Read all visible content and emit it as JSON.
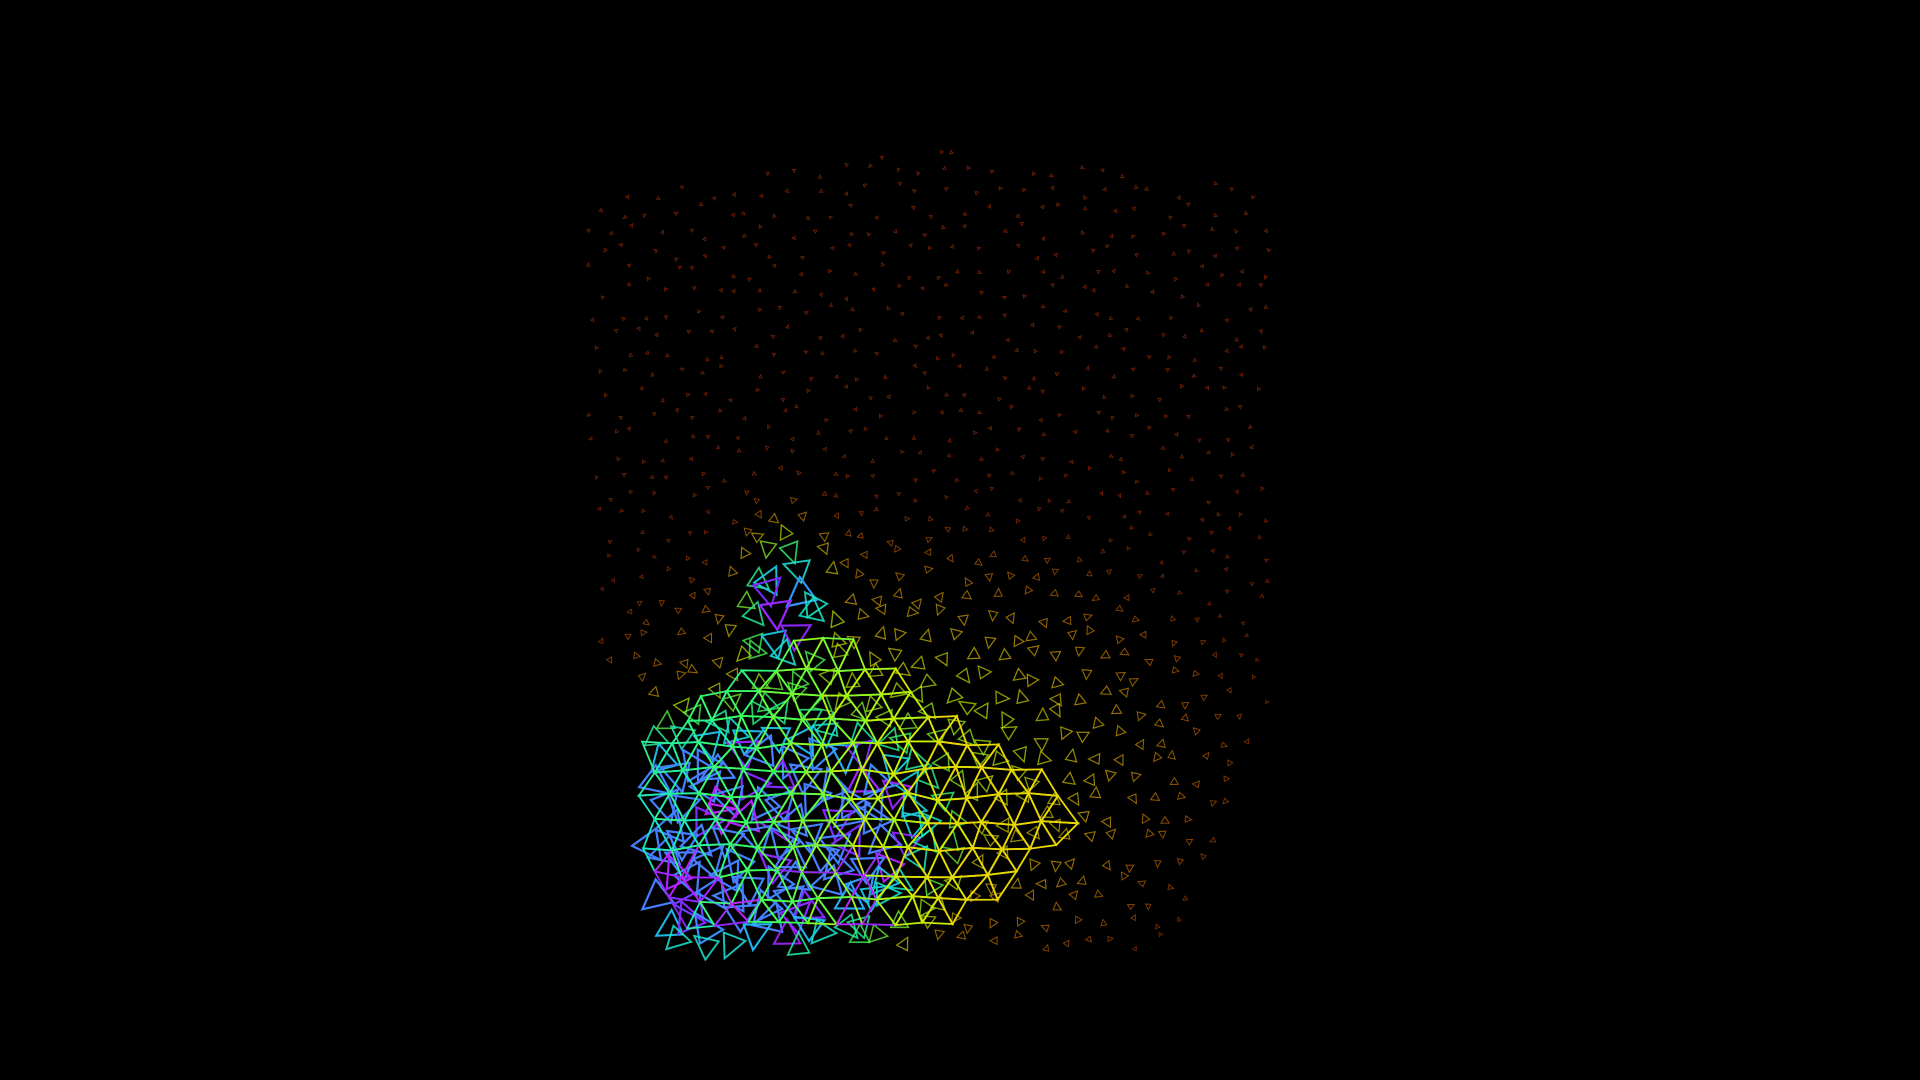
{
  "scene": {
    "background": "#000000",
    "subject": "wireframe-mesh",
    "style": "triangle-wireframe",
    "palette": [
      "#ff2a00",
      "#ff7a00",
      "#ffc800",
      "#c8f000",
      "#3cff5a",
      "#18e6c8",
      "#22b8ff",
      "#7a2cff",
      "#c020ff"
    ]
  }
}
